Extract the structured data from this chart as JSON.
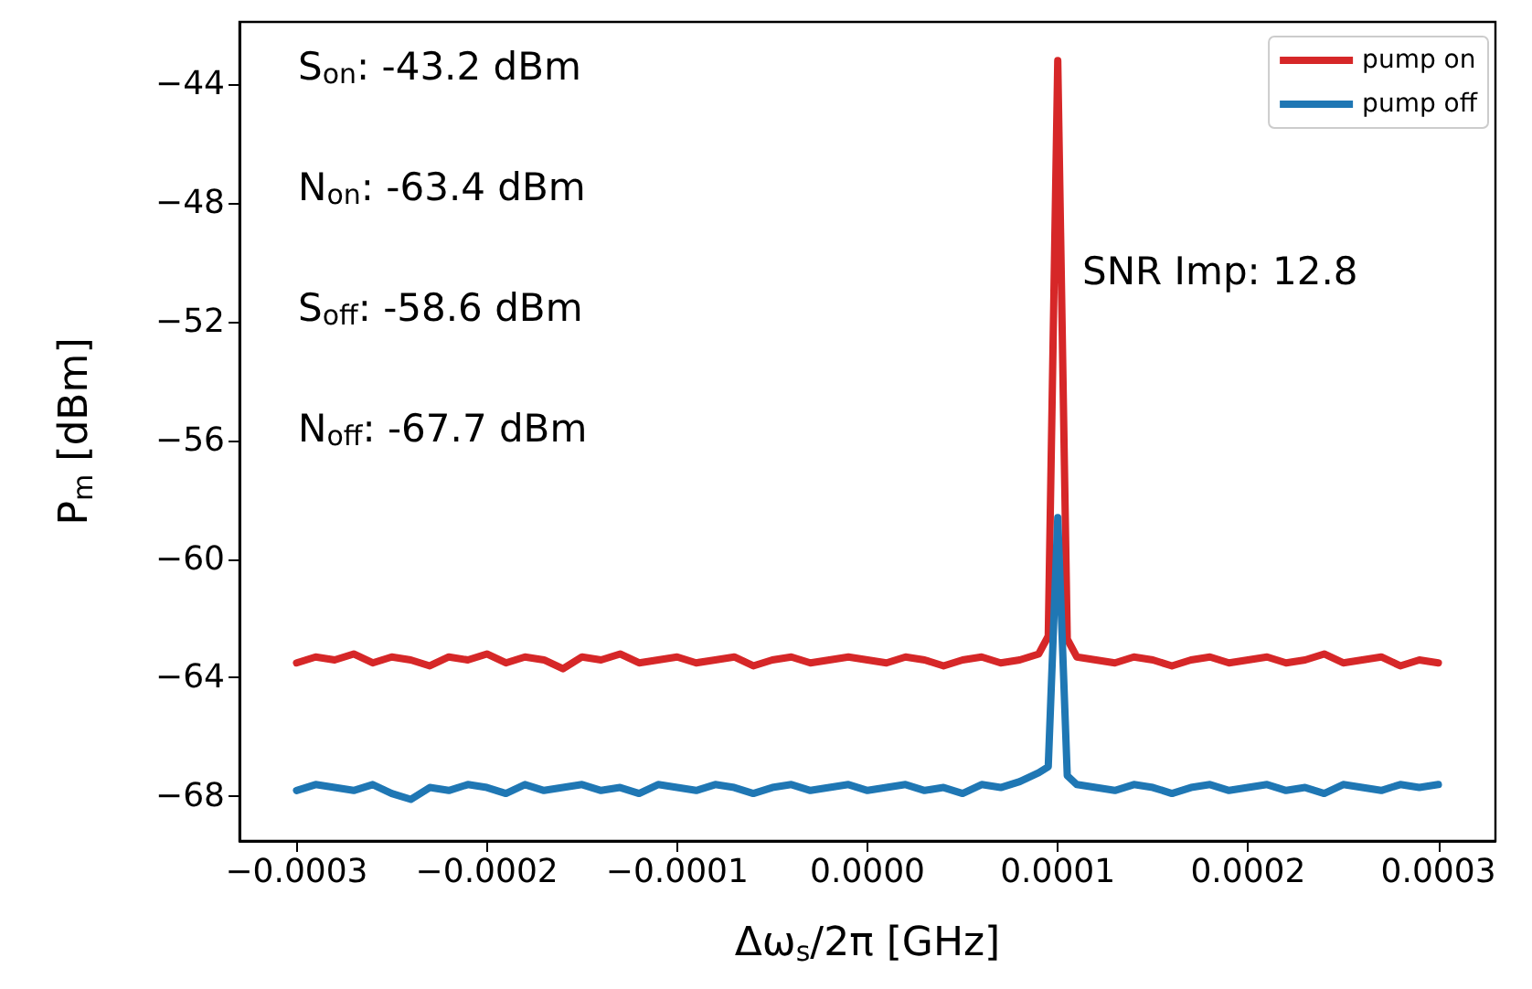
{
  "chart_data": {
    "type": "line",
    "xlabel": "Δω$_{s}$/2π [GHz]",
    "ylabel": "P$_{m}$ [dBm]",
    "annotations": [
      "S$_{on}$: -43.2 dBm",
      "N$_{on}$: -63.4 dBm",
      "S$_{off}$: -58.6 dBm",
      "N$_{off}$: -67.7 dBm",
      "SNR Imp: 12.8"
    ],
    "x": [
      -0.0003,
      -0.00029,
      -0.00028,
      -0.00027,
      -0.00026,
      -0.00025,
      -0.00024,
      -0.00023,
      -0.00022,
      -0.00021,
      -0.0002,
      -0.00019,
      -0.00018,
      -0.00017,
      -0.00016,
      -0.00015,
      -0.00014,
      -0.00013,
      -0.00012,
      -0.00011,
      -0.0001,
      -9e-05,
      -8e-05,
      -7e-05,
      -6e-05,
      -5e-05,
      -4e-05,
      -3e-05,
      -2e-05,
      -1e-05,
      0,
      1e-05,
      2e-05,
      3e-05,
      4e-05,
      5e-05,
      6e-05,
      7e-05,
      8e-05,
      9e-05,
      9.5e-05,
      0.0001,
      0.000105,
      0.00011,
      0.00012,
      0.00013,
      0.00014,
      0.00015,
      0.00016,
      0.00017,
      0.00018,
      0.00019,
      0.0002,
      0.00021,
      0.00022,
      0.00023,
      0.00024,
      0.00025,
      0.00026,
      0.00027,
      0.00028,
      0.00029,
      0.0003
    ],
    "series": [
      {
        "name": "pump on",
        "color": "#d62728",
        "values": [
          -63.5,
          -63.3,
          -63.4,
          -63.2,
          -63.5,
          -63.3,
          -63.4,
          -63.6,
          -63.3,
          -63.4,
          -63.2,
          -63.5,
          -63.3,
          -63.4,
          -63.7,
          -63.3,
          -63.4,
          -63.2,
          -63.5,
          -63.4,
          -63.3,
          -63.5,
          -63.4,
          -63.3,
          -63.6,
          -63.4,
          -63.3,
          -63.5,
          -63.4,
          -63.3,
          -63.4,
          -63.5,
          -63.3,
          -63.4,
          -63.6,
          -63.4,
          -63.3,
          -63.5,
          -63.4,
          -63.2,
          -62.6,
          -43.2,
          -62.7,
          -63.3,
          -63.4,
          -63.5,
          -63.3,
          -63.4,
          -63.6,
          -63.4,
          -63.3,
          -63.5,
          -63.4,
          -63.3,
          -63.5,
          -63.4,
          -63.2,
          -63.5,
          -63.4,
          -63.3,
          -63.6,
          -63.4,
          -63.5
        ]
      },
      {
        "name": "pump off",
        "color": "#1f77b4",
        "values": [
          -67.8,
          -67.6,
          -67.7,
          -67.8,
          -67.6,
          -67.9,
          -68.1,
          -67.7,
          -67.8,
          -67.6,
          -67.7,
          -67.9,
          -67.6,
          -67.8,
          -67.7,
          -67.6,
          -67.8,
          -67.7,
          -67.9,
          -67.6,
          -67.7,
          -67.8,
          -67.6,
          -67.7,
          -67.9,
          -67.7,
          -67.6,
          -67.8,
          -67.7,
          -67.6,
          -67.8,
          -67.7,
          -67.6,
          -67.8,
          -67.7,
          -67.9,
          -67.6,
          -67.7,
          -67.5,
          -67.2,
          -67.0,
          -58.6,
          -67.3,
          -67.6,
          -67.7,
          -67.8,
          -67.6,
          -67.7,
          -67.9,
          -67.7,
          -67.6,
          -67.8,
          -67.7,
          -67.6,
          -67.8,
          -67.7,
          -67.9,
          -67.6,
          -67.7,
          -67.8,
          -67.6,
          -67.7,
          -67.6
        ]
      }
    ],
    "xlim": [
      -0.00033,
      0.00033
    ],
    "xticks": [
      {
        "value": -0.0003,
        "label": "−0.0003"
      },
      {
        "value": -0.0002,
        "label": "−0.0002"
      },
      {
        "value": -0.0001,
        "label": "−0.0001"
      },
      {
        "value": 0,
        "label": "0.0000"
      },
      {
        "value": 0.0001,
        "label": "0.0001"
      },
      {
        "value": 0.0002,
        "label": "0.0002"
      },
      {
        "value": 0.0003,
        "label": "0.0003"
      }
    ],
    "ylim": [
      -69.5,
      -41.9
    ],
    "yticks": [
      {
        "value": -68,
        "label": "−68"
      },
      {
        "value": -64,
        "label": "−64"
      },
      {
        "value": -60,
        "label": "−60"
      },
      {
        "value": -56,
        "label": "−56"
      },
      {
        "value": -52,
        "label": "−52"
      },
      {
        "value": -48,
        "label": "−48"
      },
      {
        "value": -44,
        "label": "−44"
      }
    ],
    "grid": false,
    "legend": "top right",
    "marker": "none",
    "line_style": "solid"
  }
}
